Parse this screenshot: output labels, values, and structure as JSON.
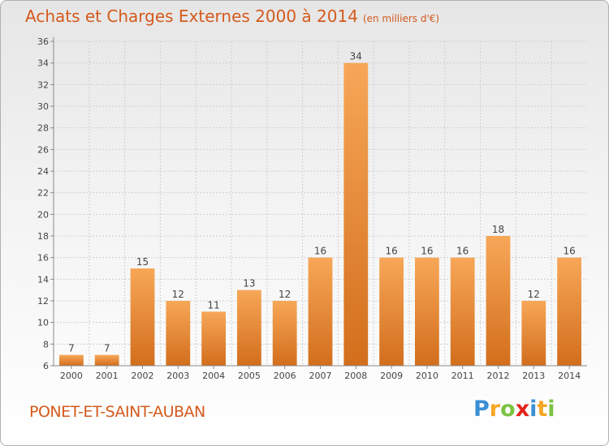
{
  "header": {
    "title": "Achats et Charges Externes 2000 à 2014",
    "subtitle": "(en milliers d'€)"
  },
  "footer": {
    "commune": "PONET-ET-SAINT-AUBAN",
    "logo_letters": [
      {
        "char": "P",
        "color": "#3b8fd6"
      },
      {
        "char": "r",
        "color": "#f5a623"
      },
      {
        "char": "o",
        "color": "#7cc242"
      },
      {
        "char": "x",
        "color": "#e2231a"
      },
      {
        "char": "i",
        "color": "#3b8fd6"
      },
      {
        "char": "t",
        "color": "#f5a623"
      },
      {
        "char": "i",
        "color": "#7cc242"
      }
    ]
  },
  "colors": {
    "bar_top": "#f7a758",
    "bar_bottom": "#d26e1c",
    "grid": "#cfcfcf",
    "axis": "#8a8a8a",
    "text": "#444444"
  },
  "chart_data": {
    "type": "bar",
    "title": "Achats et Charges Externes 2000 à 2014",
    "subtitle": "(en milliers d'€)",
    "categories": [
      "2000",
      "2001",
      "2002",
      "2003",
      "2004",
      "2005",
      "2006",
      "2007",
      "2008",
      "2009",
      "2010",
      "2011",
      "2012",
      "2013",
      "2014"
    ],
    "values": [
      7,
      7,
      15,
      12,
      11,
      13,
      12,
      16,
      34,
      16,
      16,
      16,
      18,
      12,
      16
    ],
    "ylim": [
      6,
      36
    ],
    "yticks": [
      6,
      8,
      10,
      12,
      14,
      16,
      18,
      20,
      22,
      24,
      26,
      28,
      30,
      32,
      34,
      36
    ],
    "grid": true,
    "xlabel": "",
    "ylabel": ""
  }
}
